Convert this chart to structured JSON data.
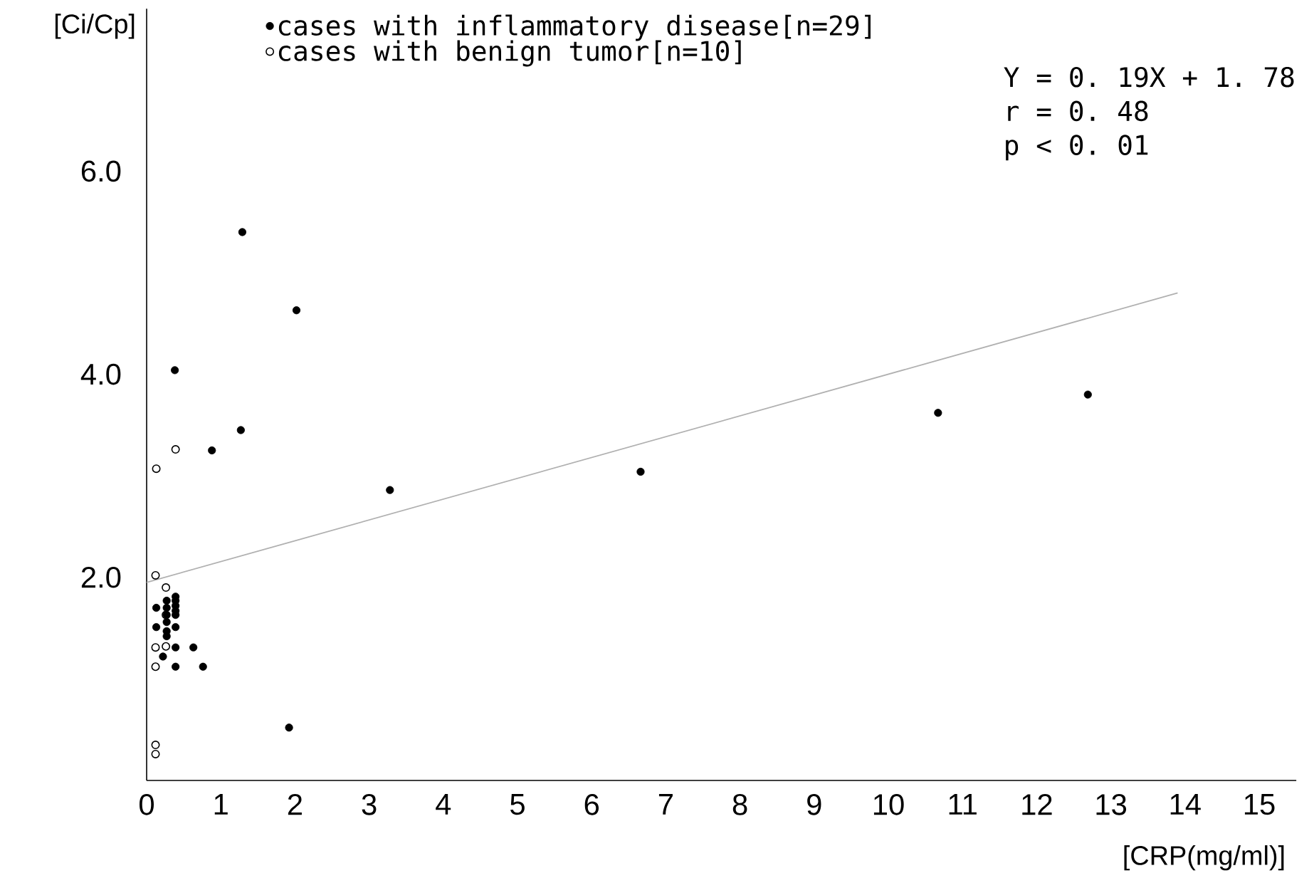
{
  "chart_data": {
    "type": "scatter",
    "xlabel": "[CRP(mg/ml)]",
    "ylabel": "[Ci/Cp]",
    "xlim": [
      0,
      15.5
    ],
    "ylim": [
      0,
      7.6
    ],
    "xticks": [
      0,
      1,
      2,
      3,
      4,
      5,
      6,
      7,
      8,
      9,
      10,
      11,
      12,
      13,
      14,
      15
    ],
    "yticks": [
      {
        "value": 2,
        "label": "2.0"
      },
      {
        "value": 4,
        "label": "4.0"
      },
      {
        "value": 6,
        "label": "6.0"
      }
    ],
    "grid": false,
    "legend": "top left",
    "series": [
      {
        "name": "cases with inflammatory disease[n=29]",
        "color": "#000000",
        "marker": "circle",
        "x": [
          1.29,
          2.02,
          0.38,
          1.27,
          0.88,
          3.28,
          6.66,
          10.67,
          12.69,
          1.92,
          0.39,
          0.39,
          0.39,
          0.39,
          0.39,
          0.39,
          0.39,
          0.39,
          0.27,
          0.27,
          0.27,
          0.27,
          0.27,
          0.27,
          0.13,
          0.13,
          0.22,
          0.63,
          0.76
        ],
        "values": [
          5.4,
          4.63,
          4.04,
          3.45,
          3.25,
          2.86,
          3.04,
          3.62,
          3.8,
          0.52,
          1.81,
          1.77,
          1.72,
          1.67,
          1.63,
          1.51,
          1.31,
          1.12,
          1.77,
          1.7,
          1.63,
          1.56,
          1.47,
          1.42,
          1.7,
          1.51,
          1.22,
          1.31,
          1.12
        ]
      },
      {
        "name": "cases with benign tumor[n=10]",
        "color": "#000000",
        "marker": "open circle",
        "x": [
          0.12,
          0.26,
          0.26,
          0.12,
          0.26,
          0.12,
          0.12,
          0.12,
          0.39,
          0.13
        ],
        "values": [
          2.02,
          1.9,
          1.63,
          1.31,
          1.32,
          1.12,
          0.35,
          0.26,
          3.26,
          3.07
        ]
      },
      {
        "type": "line",
        "color": "#b0b0b0",
        "marker": "none",
        "x": [
          0,
          13.9
        ],
        "values": [
          1.95,
          4.8
        ]
      }
    ],
    "annotations": [
      "Y = 0. 19X + 1. 78",
      "r = 0. 48",
      "p < 0. 01"
    ]
  }
}
